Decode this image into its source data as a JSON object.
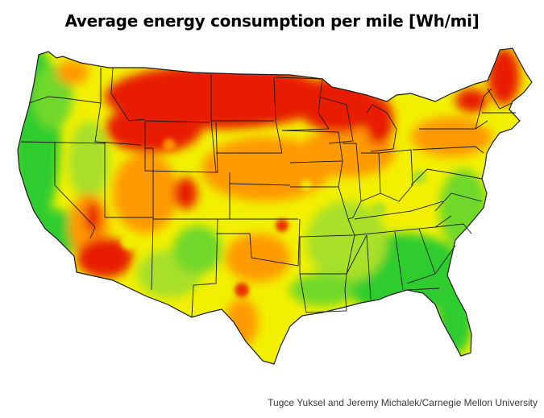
{
  "title": "Average energy consumption per mile [Wh/mi]",
  "credit": "Tugce Yuksel and Jeremy Michalek/Carnegie Mellon University",
  "colors": {
    "low": "#2ecc2e",
    "mid_low": "#a8e02a",
    "mid": "#f2f000",
    "mid_high": "#ff9a00",
    "high": "#e81a00",
    "border": "#1a1a1a"
  }
}
